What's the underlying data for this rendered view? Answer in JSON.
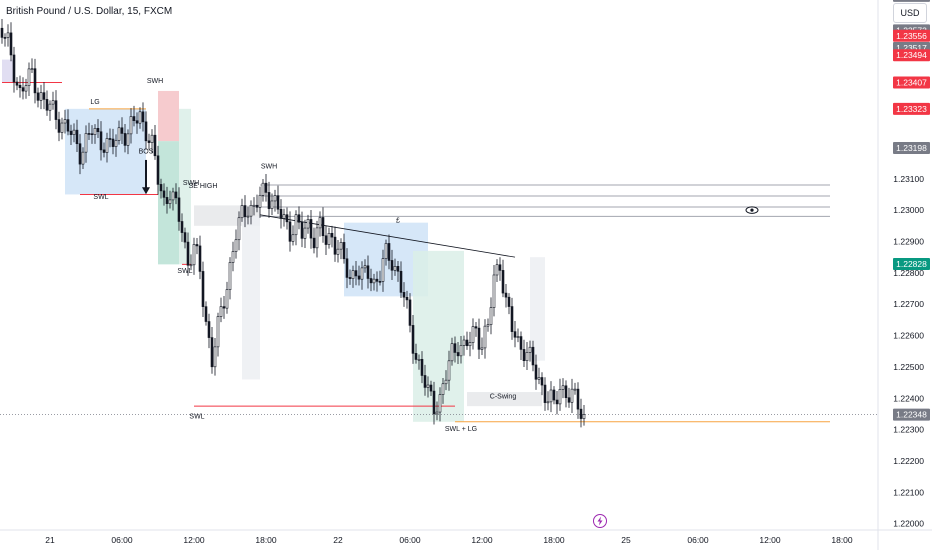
{
  "header": {
    "title": "British Pound / U.S. Dollar, 15, FXCM",
    "currency_button": "USD"
  },
  "colors": {
    "up": "#131722",
    "down": "#131722",
    "red": "#f23645",
    "gray": "#787b86",
    "green": "#089981",
    "orange": "#f7a440",
    "blue_box": "#cfe3f7",
    "green_box": "#b8e0d4",
    "pink_box": "#f5c2c6",
    "lav_box": "#dcd8f0"
  },
  "chart_data": {
    "type": "candlestick",
    "symbol": "GBPUSD",
    "timeframe": "15",
    "y_ticks": [
      1.231,
      1.23,
      1.229,
      1.228,
      1.227,
      1.226,
      1.225,
      1.224,
      1.223,
      1.222,
      1.221,
      1.22
    ],
    "y_tick_labels": [
      "1.23100",
      "1.23000",
      "1.22900",
      "1.22800",
      "1.22700",
      "1.22600",
      "1.22500",
      "1.22400",
      "1.22300",
      "1.22200",
      "1.22100",
      "1.22000"
    ],
    "ylim": [
      1.2198,
      1.2367
    ],
    "x_labels": [
      {
        "label": "21",
        "x": 0.0
      },
      {
        "label": "06:00",
        "x": 24.0
      },
      {
        "label": "12:00",
        "x": 48.0
      },
      {
        "label": "18:00",
        "x": 72.0
      },
      {
        "label": "22",
        "x": 96.0
      },
      {
        "label": "06:00",
        "x": 120.0
      },
      {
        "label": "12:00",
        "x": 144.0
      },
      {
        "label": "18:00",
        "x": 168.0
      },
      {
        "label": "25",
        "x": 192.0
      },
      {
        "label": "06:00",
        "x": 216.0
      },
      {
        "label": "12:00",
        "x": 240.0
      },
      {
        "label": "18:00",
        "x": 264.0
      }
    ],
    "price_tags": [
      {
        "value": 1.23683,
        "label": "1.23683",
        "color": "#787b86"
      },
      {
        "value": 1.23573,
        "label": "1.23573",
        "color": "#787b86"
      },
      {
        "value": 1.23556,
        "label": "1.23556",
        "color": "#f23645"
      },
      {
        "value": 1.23517,
        "label": "1.23517",
        "color": "#787b86"
      },
      {
        "value": 1.23494,
        "label": "1.23494",
        "color": "#f23645"
      },
      {
        "value": 1.23407,
        "label": "1.23407",
        "color": "#f23645"
      },
      {
        "value": 1.23323,
        "label": "1.23323",
        "color": "#f23645"
      },
      {
        "value": 1.23198,
        "label": "1.23198",
        "color": "#787b86"
      },
      {
        "value": 1.22828,
        "label": "1.22828",
        "color": "#089981"
      },
      {
        "value": 1.22348,
        "label": "1.22348",
        "color": "#787b86"
      }
    ],
    "current_price": 1.22348,
    "price_waypoints": [
      [
        -16,
        1.2358
      ],
      [
        -14,
        1.2352
      ],
      [
        -12,
        1.2344
      ],
      [
        -10,
        1.2338
      ],
      [
        -8,
        1.2341
      ],
      [
        -6,
        1.2342
      ],
      [
        -4,
        1.2338
      ],
      [
        0,
        1.2332
      ],
      [
        4,
        1.2328
      ],
      [
        6,
        1.2326
      ],
      [
        8,
        1.2322
      ],
      [
        10,
        1.2319
      ],
      [
        12,
        1.2322
      ],
      [
        14,
        1.2325
      ],
      [
        16,
        1.2323
      ],
      [
        18,
        1.2322
      ],
      [
        20,
        1.232
      ],
      [
        22,
        1.2322
      ],
      [
        24,
        1.2326
      ],
      [
        26,
        1.2324
      ],
      [
        28,
        1.2328
      ],
      [
        30,
        1.233
      ],
      [
        32,
        1.2326
      ],
      [
        34,
        1.232
      ],
      [
        36,
        1.231
      ],
      [
        38,
        1.2303
      ],
      [
        40,
        1.2306
      ],
      [
        42,
        1.23
      ],
      [
        44,
        1.2295
      ],
      [
        46,
        1.2283
      ],
      [
        48,
        1.2288
      ],
      [
        50,
        1.228
      ],
      [
        52,
        1.2265
      ],
      [
        54,
        1.2252
      ],
      [
        56,
        1.2262
      ],
      [
        58,
        1.2272
      ],
      [
        60,
        1.2282
      ],
      [
        62,
        1.2292
      ],
      [
        64,
        1.2298
      ],
      [
        66,
        1.2302
      ],
      [
        68,
        1.23
      ],
      [
        70,
        1.2304
      ],
      [
        72,
        1.2306
      ],
      [
        74,
        1.2304
      ],
      [
        76,
        1.23
      ],
      [
        78,
        1.2296
      ],
      [
        80,
        1.2294
      ],
      [
        82,
        1.2296
      ],
      [
        84,
        1.2292
      ],
      [
        86,
        1.2295
      ],
      [
        88,
        1.2292
      ],
      [
        90,
        1.2294
      ],
      [
        92,
        1.229
      ],
      [
        94,
        1.2292
      ],
      [
        96,
        1.2288
      ],
      [
        98,
        1.2283
      ],
      [
        100,
        1.2278
      ],
      [
        102,
        1.2282
      ],
      [
        104,
        1.2278
      ],
      [
        106,
        1.228
      ],
      [
        108,
        1.2277
      ],
      [
        110,
        1.228
      ],
      [
        112,
        1.2285
      ],
      [
        114,
        1.2284
      ],
      [
        116,
        1.228
      ],
      [
        118,
        1.2272
      ],
      [
        120,
        1.2262
      ],
      [
        122,
        1.2254
      ],
      [
        124,
        1.2248
      ],
      [
        126,
        1.2241
      ],
      [
        128,
        1.2238
      ],
      [
        130,
        1.224
      ],
      [
        132,
        1.2247
      ],
      [
        134,
        1.2254
      ],
      [
        136,
        1.2258
      ],
      [
        138,
        1.2256
      ],
      [
        140,
        1.2258
      ],
      [
        142,
        1.2262
      ],
      [
        144,
        1.2258
      ],
      [
        146,
        1.2262
      ],
      [
        148,
        1.2278
      ],
      [
        150,
        1.2284
      ],
      [
        152,
        1.227
      ],
      [
        154,
        1.2262
      ],
      [
        156,
        1.2258
      ],
      [
        158,
        1.2256
      ],
      [
        160,
        1.2252
      ],
      [
        162,
        1.2248
      ],
      [
        164,
        1.2244
      ],
      [
        166,
        1.224
      ],
      [
        168,
        1.2237
      ],
      [
        170,
        1.2244
      ],
      [
        172,
        1.2242
      ],
      [
        174,
        1.224
      ],
      [
        176,
        1.2238
      ],
      [
        178,
        1.22348
      ]
    ],
    "annotations": {
      "labels": [
        {
          "text": "LG",
          "x": 15,
          "y": 1.23338
        },
        {
          "text": "SWH",
          "x": 35,
          "y": 1.23405
        },
        {
          "text": "BOS",
          "x": 32,
          "y": 1.2318
        },
        {
          "text": "SWL",
          "x": 17,
          "y": 1.23035
        },
        {
          "text": "SWH",
          "x": 47,
          "y": 1.2308
        },
        {
          "text": "SE HIGH",
          "x": 51,
          "y": 1.2307
        },
        {
          "text": "SWL",
          "x": 45,
          "y": 1.228
        },
        {
          "text": "SWH",
          "x": 73,
          "y": 1.23133
        },
        {
          "text": "C-Swing",
          "x": 151,
          "y": 1.224
        },
        {
          "text": "SWL + LG",
          "x": 137,
          "y": 1.22295
        },
        {
          "text": "SWL",
          "x": 49,
          "y": 1.22335
        },
        {
          "text": "£",
          "x": 116,
          "y": 1.2296
        }
      ],
      "h_lines": [
        {
          "x1": -16,
          "x2": 4,
          "y": 1.23407,
          "color": "red"
        },
        {
          "x1": 13,
          "x2": 32,
          "y": 1.23323,
          "color": "orange"
        },
        {
          "x1": 10,
          "x2": 36,
          "y": 1.2305,
          "color": "red"
        },
        {
          "x1": 44,
          "x2": 47,
          "y": 1.22827,
          "color": "red"
        },
        {
          "x1": 48,
          "x2": 135,
          "y": 1.22375,
          "color": "red"
        },
        {
          "x1": 135,
          "x2": 260,
          "y": 1.22325,
          "color": "orange"
        },
        {
          "x1": 70,
          "x2": 260,
          "y": 1.2308,
          "color": "gray"
        },
        {
          "x1": 70,
          "x2": 260,
          "y": 1.23045,
          "color": "gray"
        },
        {
          "x1": 70,
          "x2": 260,
          "y": 1.2301,
          "color": "gray"
        },
        {
          "x1": 70,
          "x2": 260,
          "y": 1.2298,
          "color": "gray"
        }
      ],
      "boxes": [
        {
          "x1": -16,
          "x2": -12,
          "y1": 1.2348,
          "y2": 1.23407,
          "color": "lav"
        },
        {
          "x1": 5,
          "x2": 32,
          "y1": 1.23323,
          "y2": 1.2305,
          "color": "blue"
        },
        {
          "x1": 36,
          "x2": 43,
          "y1": 1.2338,
          "y2": 1.2322,
          "color": "pink"
        },
        {
          "x1": 36,
          "x2": 43,
          "y1": 1.2322,
          "y2": 1.22827,
          "color": "green"
        },
        {
          "x1": 43,
          "x2": 47,
          "y1": 1.23323,
          "y2": 1.22827,
          "color": "green_light"
        },
        {
          "x1": 48,
          "x2": 70,
          "y1": 1.23015,
          "y2": 1.2295,
          "color": "gray_box"
        },
        {
          "x1": 64,
          "x2": 70,
          "y1": 1.2298,
          "y2": 1.2246,
          "color": "gray_light"
        },
        {
          "x1": 98,
          "x2": 126,
          "y1": 1.2296,
          "y2": 1.22725,
          "color": "blue"
        },
        {
          "x1": 121,
          "x2": 138,
          "y1": 1.2287,
          "y2": 1.22325,
          "color": "green_light"
        },
        {
          "x1": 139,
          "x2": 164,
          "y1": 1.2242,
          "y2": 1.22375,
          "color": "gray_box"
        },
        {
          "x1": 160,
          "x2": 165,
          "y1": 1.2285,
          "y2": 1.2252,
          "color": "gray_light"
        }
      ],
      "trend_line": {
        "x1": 70,
        "y1": 1.22985,
        "x2": 155,
        "y2": 1.2285
      }
    }
  }
}
